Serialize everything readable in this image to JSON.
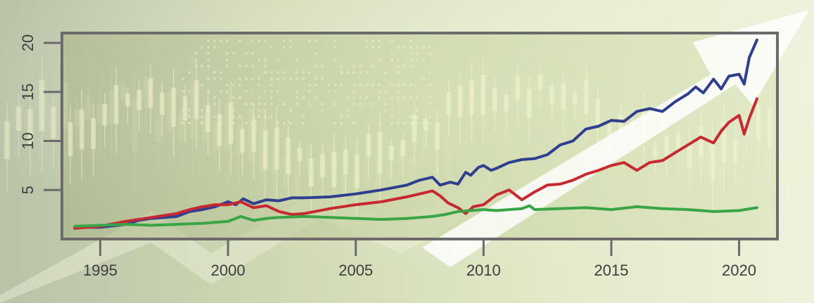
{
  "chart_data": {
    "type": "line",
    "title": "",
    "xlabel": "",
    "ylabel": "",
    "xlim": [
      1993.5,
      2021.5
    ],
    "ylim": [
      0,
      21
    ],
    "x_ticks": [
      1995,
      2000,
      2005,
      2010,
      2015,
      2020
    ],
    "y_ticks": [
      5,
      10,
      15,
      20
    ],
    "grid": false,
    "legend": "none",
    "colors": {
      "background": "#d9e2c4",
      "frame": "#6b6b6b",
      "arrow": "#ffffff"
    },
    "series": [
      {
        "color": "#2e3f8f",
        "x": [
          1994.0,
          1995.0,
          1996.0,
          1996.5,
          1997.0,
          1998.0,
          1998.5,
          1999.0,
          1999.5,
          2000.0,
          2000.3,
          2000.6,
          2001.0,
          2001.5,
          2002.0,
          2002.5,
          2003.0,
          2004.0,
          2005.0,
          2006.0,
          2007.0,
          2007.5,
          2008.0,
          2008.3,
          2008.7,
          2009.0,
          2009.3,
          2009.5,
          2009.8,
          2010.0,
          2010.3,
          2010.5,
          2011.0,
          2011.5,
          2012.0,
          2012.5,
          2013.0,
          2013.5,
          2014.0,
          2014.5,
          2015.0,
          2015.5,
          2016.0,
          2016.5,
          2017.0,
          2017.5,
          2018.0,
          2018.3,
          2018.6,
          2019.0,
          2019.3,
          2019.6,
          2020.0,
          2020.2,
          2020.4,
          2020.7
        ],
        "values": [
          1.2,
          1.2,
          1.5,
          1.9,
          2.1,
          2.3,
          2.8,
          3.0,
          3.3,
          3.8,
          3.5,
          4.1,
          3.6,
          4.0,
          3.9,
          4.2,
          4.2,
          4.3,
          4.6,
          5.0,
          5.5,
          6.0,
          6.3,
          5.5,
          5.8,
          5.6,
          6.8,
          6.5,
          7.3,
          7.5,
          7.0,
          7.2,
          7.8,
          8.1,
          8.2,
          8.6,
          9.6,
          10.0,
          11.2,
          11.5,
          12.1,
          12.0,
          13.0,
          13.3,
          13.0,
          14.0,
          14.8,
          15.5,
          14.9,
          16.3,
          15.3,
          16.6,
          16.8,
          15.8,
          18.5,
          20.3
        ]
      },
      {
        "color": "#c8282f",
        "x": [
          1994.0,
          1995.0,
          1996.0,
          1997.0,
          1998.0,
          1998.5,
          1999.0,
          1999.5,
          2000.0,
          2000.5,
          2001.0,
          2001.5,
          2002.0,
          2002.5,
          2003.0,
          2004.0,
          2005.0,
          2006.0,
          2007.0,
          2007.5,
          2008.0,
          2008.3,
          2008.6,
          2009.0,
          2009.3,
          2009.6,
          2010.0,
          2010.5,
          2011.0,
          2011.5,
          2012.0,
          2012.5,
          2013.0,
          2013.5,
          2014.0,
          2014.5,
          2015.0,
          2015.5,
          2016.0,
          2016.5,
          2017.0,
          2017.5,
          2018.0,
          2018.5,
          2019.0,
          2019.3,
          2019.6,
          2020.0,
          2020.2,
          2020.4,
          2020.7
        ],
        "values": [
          1.1,
          1.3,
          1.8,
          2.2,
          2.6,
          3.0,
          3.3,
          3.5,
          3.5,
          3.8,
          3.2,
          3.4,
          2.8,
          2.5,
          2.6,
          3.1,
          3.5,
          3.8,
          4.3,
          4.6,
          4.9,
          4.4,
          3.7,
          3.2,
          2.6,
          3.3,
          3.5,
          4.5,
          5.0,
          4.0,
          4.8,
          5.5,
          5.6,
          6.0,
          6.6,
          7.0,
          7.5,
          7.8,
          7.0,
          7.8,
          8.0,
          8.8,
          9.6,
          10.4,
          9.8,
          11.0,
          11.9,
          12.6,
          10.7,
          12.3,
          14.3
        ]
      },
      {
        "color": "#3aa546",
        "x": [
          1994.0,
          1995.0,
          1996.0,
          1997.0,
          1998.0,
          1999.0,
          2000.0,
          2000.5,
          2001.0,
          2001.5,
          2002.0,
          2003.0,
          2004.0,
          2005.0,
          2006.0,
          2007.0,
          2008.0,
          2008.5,
          2009.0,
          2009.5,
          2010.0,
          2010.5,
          2011.0,
          2011.5,
          2011.8,
          2012.0,
          2013.0,
          2014.0,
          2015.0,
          2016.0,
          2017.0,
          2018.0,
          2019.0,
          2020.0,
          2020.7
        ],
        "values": [
          1.3,
          1.4,
          1.5,
          1.4,
          1.5,
          1.6,
          1.8,
          2.3,
          1.9,
          2.1,
          2.2,
          2.3,
          2.2,
          2.1,
          2.0,
          2.1,
          2.3,
          2.5,
          2.8,
          2.9,
          3.0,
          2.9,
          3.0,
          3.1,
          3.4,
          3.0,
          3.1,
          3.2,
          3.0,
          3.3,
          3.1,
          3.0,
          2.8,
          2.9,
          3.2
        ]
      }
    ]
  }
}
